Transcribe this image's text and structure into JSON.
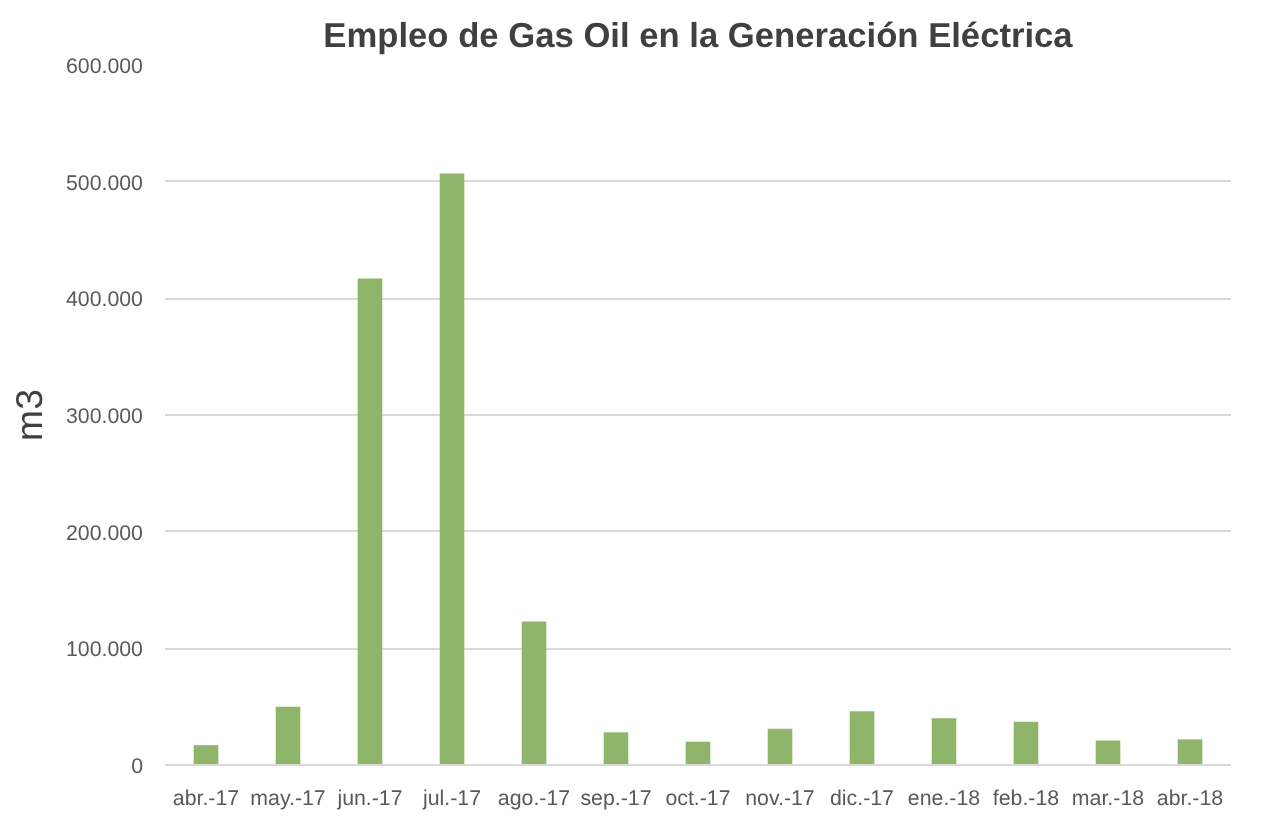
{
  "chart_data": {
    "type": "bar",
    "title": "Empleo de Gas Oil en la Generación Eléctrica",
    "ylabel": "m3",
    "categories": [
      "abr.-17",
      "may.-17",
      "jun.-17",
      "jul.-17",
      "ago.-17",
      "sep.-17",
      "oct.-17",
      "nov.-17",
      "dic.-17",
      "ene.-18",
      "feb.-18",
      "mar.-18",
      "abr.-18"
    ],
    "values": [
      17000,
      50000,
      417000,
      507000,
      123000,
      28000,
      20000,
      31000,
      46000,
      40000,
      37000,
      21000,
      22000
    ],
    "color": "#8fb56a",
    "ylim": [
      0,
      600000
    ],
    "yticks": [
      0,
      {
        "value": 100000,
        "label": "100.000"
      },
      {
        "value": 200000,
        "label": "200.000"
      },
      {
        "value": 300000,
        "label": "300.000"
      },
      {
        "value": 400000,
        "label": "400.000"
      },
      {
        "value": 500000,
        "label": "500.000"
      },
      {
        "value": 600000,
        "label": "600.000"
      }
    ],
    "grid": "y"
  }
}
